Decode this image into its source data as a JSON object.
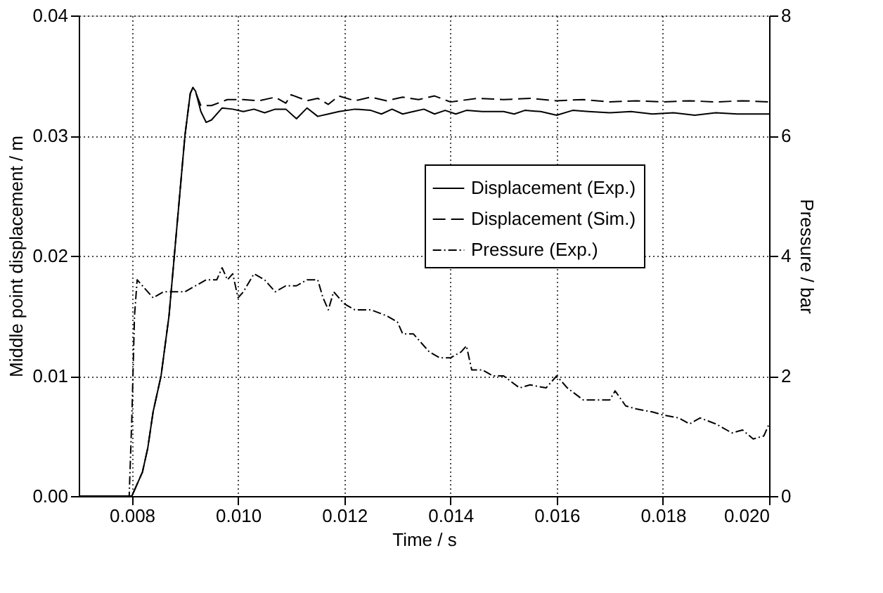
{
  "chart_data": {
    "type": "line",
    "xlabel": "Time / s",
    "ylabel": "Middle point displacement / m",
    "y2label": "Pressure / bar",
    "xlim": [
      0.007,
      0.02
    ],
    "xticks": [
      {
        "value": 0.008,
        "label": "0.008"
      },
      {
        "value": 0.01,
        "label": "0.010"
      },
      {
        "value": 0.012,
        "label": "0.012"
      },
      {
        "value": 0.014,
        "label": "0.014"
      },
      {
        "value": 0.016,
        "label": "0.016"
      },
      {
        "value": 0.018,
        "label": "0.018"
      },
      {
        "value": 0.02,
        "label": "0.020"
      }
    ],
    "ylim": [
      0,
      0.04
    ],
    "yticks": [
      {
        "value": 0,
        "label": "0.00"
      },
      {
        "value": 0.01,
        "label": "0.01"
      },
      {
        "value": 0.02,
        "label": "0.02"
      },
      {
        "value": 0.03,
        "label": "0.03"
      },
      {
        "value": 0.04,
        "label": "0.04"
      }
    ],
    "y2lim": [
      0,
      8
    ],
    "y2ticks": [
      0,
      2,
      4,
      6,
      8
    ],
    "grid": true,
    "legend": "right",
    "marker": "none",
    "series": [
      {
        "name": "Displacement (Exp.)",
        "color": "#000000",
        "line_style": "solid",
        "x": [
          0.007,
          0.0079,
          0.008,
          0.0082,
          0.0083,
          0.0084,
          0.00855,
          0.0087,
          0.0088,
          0.0089,
          0.009,
          0.0091,
          0.00915,
          0.0092,
          0.0093,
          0.0094,
          0.0095,
          0.0097,
          0.0099,
          0.0101,
          0.0103,
          0.0105,
          0.0107,
          0.0109,
          0.0111,
          0.0113,
          0.0115,
          0.0117,
          0.0119,
          0.0122,
          0.0125,
          0.0127,
          0.0129,
          0.0131,
          0.0133,
          0.0135,
          0.0137,
          0.0139,
          0.0141,
          0.0143,
          0.0146,
          0.015,
          0.0152,
          0.0154,
          0.0157,
          0.016,
          0.0163,
          0.0166,
          0.017,
          0.0174,
          0.0178,
          0.0182,
          0.0186,
          0.019,
          0.0194,
          0.0198,
          0.02
        ],
        "values": [
          0,
          0,
          0,
          0.002,
          0.004,
          0.007,
          0.01,
          0.015,
          0.02,
          0.025,
          0.03,
          0.0335,
          0.034,
          0.0337,
          0.032,
          0.0311,
          0.0313,
          0.0323,
          0.0322,
          0.032,
          0.0322,
          0.0319,
          0.0322,
          0.0322,
          0.0314,
          0.0323,
          0.0316,
          0.0318,
          0.032,
          0.0322,
          0.0321,
          0.0318,
          0.0322,
          0.0318,
          0.032,
          0.0322,
          0.0318,
          0.0321,
          0.0318,
          0.0321,
          0.032,
          0.032,
          0.0318,
          0.0321,
          0.032,
          0.0317,
          0.0321,
          0.032,
          0.0319,
          0.032,
          0.0318,
          0.0319,
          0.0317,
          0.0319,
          0.0318,
          0.0318,
          0.0318
        ]
      },
      {
        "name": "Displacement (Sim.)",
        "color": "#000000",
        "line_style": "dashed",
        "x": [
          0.007,
          0.0079,
          0.008,
          0.0082,
          0.0083,
          0.0084,
          0.00855,
          0.0087,
          0.0088,
          0.0089,
          0.009,
          0.0091,
          0.00915,
          0.0092,
          0.0093,
          0.0095,
          0.0098,
          0.0101,
          0.0104,
          0.0107,
          0.0109,
          0.011,
          0.0113,
          0.0115,
          0.0117,
          0.0119,
          0.0122,
          0.0125,
          0.0128,
          0.0131,
          0.0134,
          0.0137,
          0.014,
          0.0145,
          0.015,
          0.0155,
          0.016,
          0.0165,
          0.017,
          0.0175,
          0.018,
          0.0185,
          0.019,
          0.0195,
          0.02
        ],
        "values": [
          0,
          0,
          0,
          0.002,
          0.004,
          0.007,
          0.01,
          0.015,
          0.02,
          0.025,
          0.03,
          0.0335,
          0.034,
          0.0336,
          0.0325,
          0.0325,
          0.033,
          0.033,
          0.0329,
          0.0332,
          0.0327,
          0.0334,
          0.0329,
          0.0331,
          0.0326,
          0.0333,
          0.0329,
          0.0332,
          0.0329,
          0.0332,
          0.033,
          0.0333,
          0.0328,
          0.0331,
          0.033,
          0.0331,
          0.0329,
          0.033,
          0.0328,
          0.0329,
          0.0328,
          0.0329,
          0.0328,
          0.0329,
          0.0328
        ]
      },
      {
        "name": "Pressure (Exp.)",
        "color": "#000000",
        "line_style": "dotted",
        "axis": "y2",
        "x": [
          0.007,
          0.0079,
          0.00795,
          0.008,
          0.00805,
          0.0081,
          0.0082,
          0.0084,
          0.0086,
          0.0088,
          0.009,
          0.0092,
          0.0094,
          0.0096,
          0.0097,
          0.0098,
          0.0099,
          0.01,
          0.0101,
          0.0103,
          0.0105,
          0.0107,
          0.0109,
          0.0111,
          0.0113,
          0.0115,
          0.0116,
          0.0117,
          0.0118,
          0.0119,
          0.012,
          0.0122,
          0.0125,
          0.0128,
          0.013,
          0.0131,
          0.0133,
          0.0135,
          0.0136,
          0.0138,
          0.014,
          0.0142,
          0.0143,
          0.0144,
          0.0146,
          0.0148,
          0.015,
          0.0153,
          0.0155,
          0.0158,
          0.016,
          0.0162,
          0.0165,
          0.0168,
          0.017,
          0.0171,
          0.0173,
          0.0175,
          0.0178,
          0.018,
          0.0183,
          0.0185,
          0.0187,
          0.019,
          0.0193,
          0.0195,
          0.0197,
          0.0199,
          0.02
        ],
        "values": [
          0,
          0,
          0,
          1.3,
          3.0,
          3.6,
          3.5,
          3.3,
          3.4,
          3.4,
          3.4,
          3.5,
          3.6,
          3.6,
          3.8,
          3.6,
          3.7,
          3.3,
          3.4,
          3.7,
          3.6,
          3.4,
          3.5,
          3.5,
          3.6,
          3.6,
          3.3,
          3.1,
          3.4,
          3.3,
          3.2,
          3.1,
          3.1,
          3.0,
          2.9,
          2.7,
          2.7,
          2.5,
          2.4,
          2.3,
          2.3,
          2.4,
          2.5,
          2.1,
          2.1,
          2.0,
          2.0,
          1.8,
          1.85,
          1.8,
          2.0,
          1.8,
          1.6,
          1.6,
          1.6,
          1.75,
          1.5,
          1.45,
          1.4,
          1.35,
          1.3,
          1.2,
          1.3,
          1.2,
          1.05,
          1.1,
          0.95,
          1.0,
          1.2
        ]
      }
    ]
  }
}
